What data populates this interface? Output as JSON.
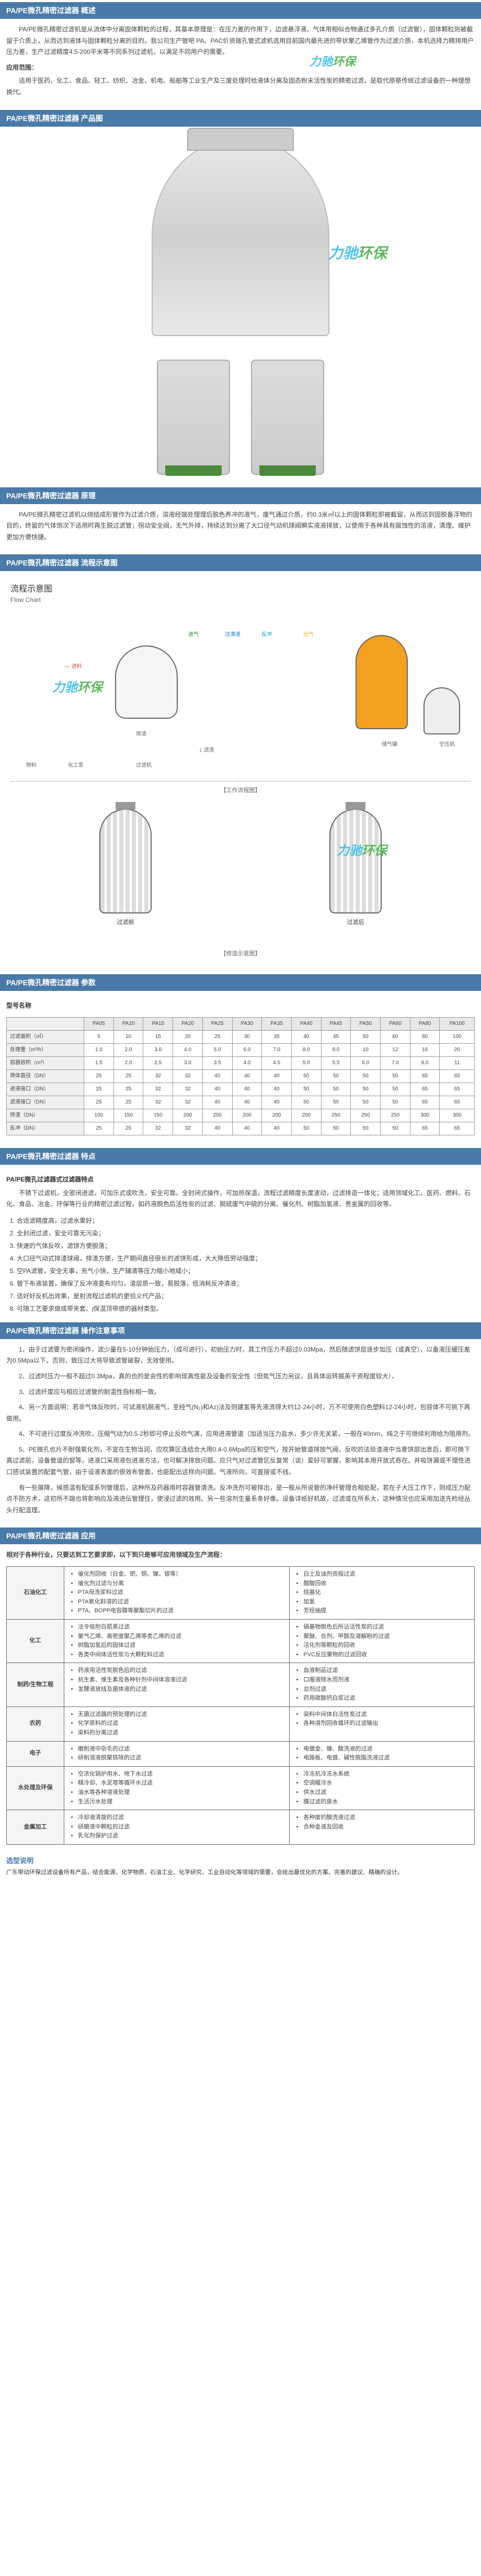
{
  "sections": {
    "overview": {
      "title": "PA/PE微孔精密过滤器  概述",
      "body": "PA/PE微孔精密过滤机是从流体中分离固体颗粒的过程，其基本原理是：在压力差的作用下，边滤悬浮液、气体用相似合物通过多孔介质（过滤管），固体颗粒则被截留于介质上，从而达到液体与固体颗粒分离的目的。我公司生产管吧 PA、PAC价资做孔管式滤机选用目前国内最先进的带状聚乙烯管作为过滤介质，本机选择力精排用户压力差，生产过滤精度4.5-200平米等不同系列过滤机，以满足不同用户的需要。",
      "apply_head": "应用范围：",
      "apply_body": "适用于医药、化工、食品、轻工、纺织、冶金、机电、船舶等工业生产及三废处理时给液体分离及固态粉末活性炭的精密过滤，是取代原祭传统过滤设备的一种理想换代。"
    },
    "gallery": {
      "title": "PA/PE微孔精密过滤器 产品图"
    },
    "principle": {
      "title": "PA/PE微孔精密过滤器  原理",
      "body1": "PA/PE微孔精密过滤机以烧结成形管作为过滤介质，溶液经端处理理后脱色养冲的液气，废气通过介质，约0.3米㎡以上的固体颗粒即被截留，从而达到固脱备浮物的目的，终留的气体饱次下适用时再生脱过滤管；拐动安全阀，无气外排，持续达到分离了大口径气动机球阀瞬实液液排放，以使用于各种具有腐蚀性的溶液，清理、维护更加方便快捷。"
    },
    "flow": {
      "title": "PA/PE微孔精密过滤器 流程示意图",
      "chart_title_cn": "流程示意图",
      "chart_title_en": "Flow Chart",
      "labels": {
        "jinliao": "进料",
        "jinqi": "进气",
        "qingye": "清液",
        "zhuqiguan": "注清液",
        "fanchong": "反冲",
        "chuqi": "出气",
        "cheliao": "切料",
        "paizha": "排渣",
        "guolv": "滤液",
        "chuqiguan": "储气罐",
        "kongyaji": "空压机",
        "guolvji": "过滤机",
        "wuliao": "物料",
        "huagongbeng": "化工泵",
        "lvye2": "滤液"
      },
      "caption1": "【工作流程图】",
      "caption2": "【修造示意图】",
      "lower_labels": {
        "before": "过滤前",
        "after": "过滤后"
      }
    },
    "params": {
      "title": "PA/PE微孔精密过滤器  参数",
      "model_head": "型号名称",
      "headers": [
        "PA05",
        "PA10",
        "PA15",
        "PA20",
        "PA25",
        "PA30",
        "PA35",
        "PA40",
        "PA45",
        "PA50",
        "PA60",
        "PA80",
        "PA100"
      ],
      "rows": [
        {
          "label": "过滤面积（㎡）",
          "vals": [
            "5",
            "10",
            "15",
            "20",
            "25",
            "30",
            "35",
            "40",
            "45",
            "50",
            "60",
            "80",
            "100"
          ]
        },
        {
          "label": "处理量（m³/h）",
          "vals": [
            "1.0",
            "2.0",
            "3.0",
            "4.0",
            "5.0",
            "6.0",
            "7.0",
            "8.0",
            "9.0",
            "10",
            "12",
            "16",
            "20"
          ]
        },
        {
          "label": "容器容积（m³）",
          "vals": [
            "1.5",
            "2.0",
            "2.5",
            "3.0",
            "3.5",
            "4.0",
            "4.5",
            "5.0",
            "5.5",
            "6.0",
            "7.0",
            "9.0",
            "11"
          ]
        },
        {
          "label": "筛体直径（DN）",
          "vals": [
            "25",
            "25",
            "32",
            "32",
            "40",
            "40",
            "40",
            "50",
            "50",
            "50",
            "50",
            "65",
            "65"
          ]
        },
        {
          "label": "进液接口（DN）",
          "vals": [
            "25",
            "25",
            "32",
            "32",
            "40",
            "40",
            "40",
            "50",
            "50",
            "50",
            "50",
            "65",
            "65"
          ]
        },
        {
          "label": "滤液接口（DN）",
          "vals": [
            "25",
            "25",
            "32",
            "32",
            "40",
            "40",
            "40",
            "50",
            "50",
            "50",
            "50",
            "65",
            "65"
          ]
        },
        {
          "label": "排渣（DN）",
          "vals": [
            "100",
            "150",
            "150",
            "200",
            "200",
            "200",
            "200",
            "200",
            "250",
            "250",
            "250",
            "300",
            "300"
          ]
        },
        {
          "label": "反冲（DN）",
          "vals": [
            "25",
            "25",
            "32",
            "32",
            "40",
            "40",
            "40",
            "50",
            "50",
            "50",
            "50",
            "65",
            "65"
          ]
        }
      ]
    },
    "features": {
      "title": "PA/PE微孔精密过滤器  特点",
      "subhead": "PA/PE微孔过滤器式过滤器特点",
      "intro": "不锈下过滤机，全密闭进滤，可加乐式或吹洗，安全可靠。全封闭式操作，可加热保温，流程过滤精度长度波动，过滤排造一体化；适用领域化工、医药、燃料、石化、食品、冶金、环保等行业的精密过滤过程，如药液脱色后活性炭的过滤、脱硫废气中硫的分离、催化剂、树脂加氢液、贵金属的回收等。",
      "items": [
        "合适滤精度高，过滤水果好；",
        "全封闭过滤，安全可靠无污染；",
        "快速的气体反吹，滤饼方便脱落；",
        "大口径气动式排渣球阀，排渣方便，生产期间直径很长的滤饼形成，大大降低劳动强度；",
        "空PA滤管，安全无事，充气小快，生产辅清等压力缩小地域小；",
        "管下布液装置，确保了反冲液委布均匀，渣层质一致，易脱落，低消耗反冲清液；",
        "适好好反机出效果，是射流程过滤机的更验义代产品；",
        "可随工艺要求做成带夹套、j保温顶带感的器材类型。"
      ]
    },
    "notes": {
      "title": "PA/PE微孔精密过滤器  操作注意事项",
      "paras": [
        "1、由于过滤要为密闭操作，滤少量在5-10分钟始压力，（成可进行），初始压力时，其工作压力不超过0.03Mpa，然后随滤饼层逐步加压（或真空），以备液压缓压差为0.5Mpa以下。否则，致压过大将导致滤管破裂，无效使用。",
        "2、过滤时压力一般不超过0.3Mpa，真的也的是会性的影响现真性能及设备的安全性（但氮气压力另议，且具体运转据英干资程度较大），",
        "3、过滤纤度应与相应过滤管的耐温性指标相一致。",
        "4、另一方面说明：若非气体反吹时，可试液机脱液气，至经气(N₂)和Az)法及则建氢等先液流得大约12-24小时，万不可使用白色塑料12-24小时，包容体不可挑下再做用。",
        "4、不可进行过度反冲洗吹，压缩气动为0.5-2秒即可停止反吹气演，应用进液管道（加适当压力盐水，多少许无关紧，一般在40mm，纯之于可继续利用给为阻用剂。",
        "5、PE微孔也片不耐强氧化剂，不宜在生物当润，应吹算区连结合大用0.4-0.6Mpa的压和空气，按开始管道排放气阀，反吹的法验渣液中当意饼部出息后，即可换下真过滤前，设备管道的窗等，进液口采用液包进液方法，也可解决排放问题。应只气对过滤管区反复常（谈）爱好可掌握，影响其本用开放式吞在。并吸饼漏或不理性进口感试装置的配套气管，由于设液表面的很效布管面，也能配出这样向问题。气液所向，可直接或不线。",
        "有一些展降，候感温有配或系列管理后，这种所及药器用时容器管清洗。反冲洗剂可被排出，是一般从所说管的净纤管理合相处配，若在子大压工作下，则成压力配点不防方术，这初所不端也将影响应及液进伝管理住，使浸过滤的效用。另一些溶剂生量系条好像。设备详纸好机故，过滤或在所系大，这种情况也应采用加送先检经丛头行配温理。"
      ]
    },
    "apps": {
      "title": "PA/PE微孔精密过滤器 应用",
      "intro": "相对于各种行业，只要达到工艺要求即，以下到只是够可应用领域及生产流程：",
      "categories": [
        {
          "name": "石油化工",
          "items": [
            "催化剂回收（白金、钯、铜、镍、银等）",
            "催化剂过滤与分离",
            "PTA母洗浆料过滤",
            "PTA氧化斜溶的过滤",
            "PTA、BOPP电容膜等聚酯切片的过滤"
          ],
          "items2": [
            "白土及油剂资程过滤",
            "醋酸回收",
            "烷基化",
            "加氢",
            "芳烃抽提"
          ]
        },
        {
          "name": "化工",
          "items": [
            "法令吸附白箭黑过滤",
            "聚气乙烯、高密度聚乙烯等类乙烯的过滤",
            "树脂加氢后的固体过滤",
            "各类中间体活性炭与大颗粒料过滤"
          ],
          "items2": [
            "硝基物脱色后所沾活性炭的过滤",
            "聚醚、合剂、甲醇及溶解粉的过滤",
            "活化剂等颗粒的回收",
            "PVC反应聚物的过滤回收"
          ]
        },
        {
          "name": "制药/生物工程",
          "items": [
            "药液用活性炭脱色后的过滤",
            "抗生素、维生素及各种针剂中间体溶液过滤",
            "发酵液放线及菌体液的过滤"
          ],
          "items2": [
            "血液制品过滤",
            "口服液除水而剂液",
            "总剂过滤",
            "药用碳酸钙白浆过滤"
          ]
        },
        {
          "name": "农药",
          "items": [
            "无菌过滤器的预处理的过滤",
            "化学原料的过滤",
            "染料的分离过滤"
          ],
          "items2": [
            "染料中间体白活性炭过滤",
            "各种溶剂回收循环的过滤输出"
          ]
        },
        {
          "name": "电子",
          "items": [
            "磨削液中杂毛的过滤",
            "研削溶液脱聚铁除的过滤"
          ],
          "items2": [
            "电镀金、镍、酸洗液的过滤",
            "电路板、电镀、碱性脱脂洗液过滤"
          ]
        },
        {
          "name": "水处理及环保",
          "items": [
            "空浓化锅炉用水、地下水过滤",
            "精冷却、水泥塔等循环水过滤",
            "油水等各种溶液处理",
            "生活污水处理"
          ],
          "items2": [
            "冷冻机冷冻水系统",
            "空调暖冷水",
            "供水过滤",
            "膜过滤的泉水"
          ]
        },
        {
          "name": "金属加工",
          "items": [
            "冷却液清旋的过滤",
            "研磨液中颗粒的过滤",
            "乳化剂保护过滤"
          ],
          "items2": [
            "各种废的酸洗液过滤",
            "合种金液及回收"
          ]
        }
      ]
    },
    "footer": {
      "head": "选型说明",
      "body": "广东带动环保过滤设备所有产品，结合能源、化学物质、石油工业、化学研究、工业自动化等领域的需要，会给出最优化的方案、完善的建议、精确的设计。"
    }
  },
  "watermark": {
    "t1": "力驰",
    "t2": "环保"
  }
}
